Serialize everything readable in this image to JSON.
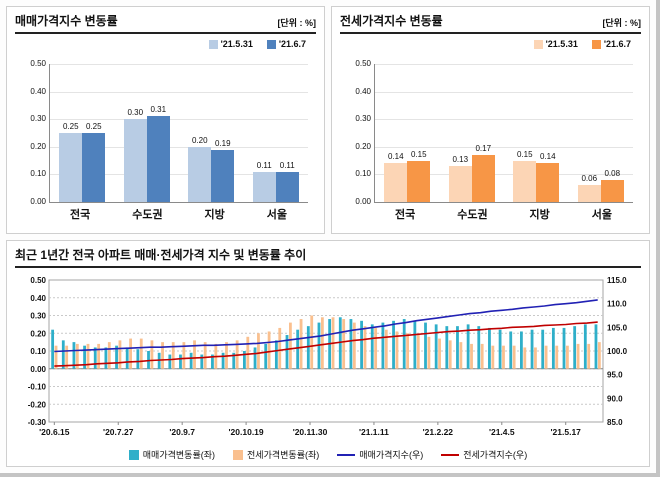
{
  "chart_data": [
    {
      "type": "bar",
      "title": "매매가격지수 변동률",
      "unit": "[단위 : %]",
      "categories": [
        "전국",
        "수도권",
        "지방",
        "서울"
      ],
      "ylim": [
        0,
        0.5
      ],
      "ystep": 0.1,
      "legend_position": "top-right",
      "series": [
        {
          "name": "'21.5.31",
          "color": "#b8cce4",
          "values": [
            0.25,
            0.3,
            0.2,
            0.11
          ]
        },
        {
          "name": "'21.6.7",
          "color": "#4f81bd",
          "values": [
            0.25,
            0.31,
            0.19,
            0.11
          ]
        }
      ]
    },
    {
      "type": "bar",
      "title": "전세가격지수 변동률",
      "unit": "[단위 : %]",
      "categories": [
        "전국",
        "수도권",
        "지방",
        "서울"
      ],
      "ylim": [
        0,
        0.5
      ],
      "ystep": 0.1,
      "legend_position": "top-right",
      "series": [
        {
          "name": "'21.5.31",
          "color": "#fcd5b5",
          "values": [
            0.14,
            0.13,
            0.15,
            0.06
          ]
        },
        {
          "name": "'21.6.7",
          "color": "#f79646",
          "values": [
            0.15,
            0.17,
            0.14,
            0.08
          ]
        }
      ]
    },
    {
      "type": "combo",
      "title": "최근 1년간 전국 아파트 매매·전세가격 지수 및 변동률 추이",
      "x_tick_labels": [
        "'20.6.15",
        "'20.7.27",
        "'20.9.7",
        "'20.10.19",
        "'20.11.30",
        "'21.1.11",
        "'21.2.22",
        "'21.4.5",
        "'21.5.17"
      ],
      "x_tick_every": 6,
      "n_points": 52,
      "left_axis": {
        "min": -0.3,
        "max": 0.5,
        "step": 0.1
      },
      "right_axis": {
        "min": 85.0,
        "max": 115.0,
        "step": 5.0
      },
      "grid": "dotted",
      "legend_position": "bottom",
      "series": [
        {
          "name": "매매가격변동률(좌)",
          "type": "bar",
          "axis": "left",
          "color": "#2fafc9",
          "values": [
            0.22,
            0.16,
            0.15,
            0.13,
            0.12,
            0.12,
            0.13,
            0.12,
            0.11,
            0.1,
            0.09,
            0.08,
            0.08,
            0.09,
            0.08,
            0.08,
            0.09,
            0.09,
            0.1,
            0.12,
            0.14,
            0.16,
            0.19,
            0.22,
            0.24,
            0.26,
            0.28,
            0.29,
            0.28,
            0.27,
            0.25,
            0.26,
            0.27,
            0.28,
            0.27,
            0.26,
            0.25,
            0.24,
            0.24,
            0.25,
            0.24,
            0.23,
            0.22,
            0.21,
            0.21,
            0.22,
            0.22,
            0.23,
            0.23,
            0.24,
            0.25,
            0.25
          ]
        },
        {
          "name": "전세가격변동률(좌)",
          "type": "bar",
          "axis": "left",
          "color": "#fac08f",
          "values": [
            0.13,
            0.13,
            0.14,
            0.14,
            0.14,
            0.15,
            0.16,
            0.17,
            0.17,
            0.16,
            0.15,
            0.15,
            0.15,
            0.16,
            0.15,
            0.14,
            0.15,
            0.16,
            0.18,
            0.2,
            0.21,
            0.23,
            0.26,
            0.28,
            0.3,
            0.29,
            0.29,
            0.28,
            0.26,
            0.24,
            0.23,
            0.22,
            0.21,
            0.2,
            0.19,
            0.18,
            0.17,
            0.16,
            0.15,
            0.14,
            0.14,
            0.13,
            0.13,
            0.13,
            0.12,
            0.12,
            0.13,
            0.13,
            0.13,
            0.14,
            0.14,
            0.15
          ]
        },
        {
          "name": "매매가격지수(우)",
          "type": "line",
          "axis": "right",
          "color": "#2121b4",
          "values": [
            99.9,
            100.0,
            100.1,
            100.2,
            100.3,
            100.4,
            100.5,
            100.6,
            100.7,
            100.8,
            100.8,
            100.9,
            101.0,
            101.1,
            101.2,
            101.2,
            101.3,
            101.4,
            101.5,
            101.6,
            101.8,
            102.0,
            102.3,
            102.6,
            102.9,
            103.2,
            103.6,
            104.0,
            104.4,
            104.7,
            105.0,
            105.3,
            105.7,
            106.0,
            106.4,
            106.7,
            107.0,
            107.3,
            107.6,
            107.9,
            108.1,
            108.4,
            108.6,
            108.8,
            109.1,
            109.3,
            109.5,
            109.8,
            110.0,
            110.2,
            110.5,
            110.8
          ]
        },
        {
          "name": "전세가격지수(우)",
          "type": "line",
          "axis": "right",
          "color": "#c00000",
          "values": [
            96.8,
            96.9,
            97.0,
            97.1,
            97.3,
            97.4,
            97.5,
            97.7,
            97.8,
            98.0,
            98.1,
            98.2,
            98.4,
            98.5,
            98.6,
            98.8,
            98.9,
            99.1,
            99.3,
            99.5,
            99.8,
            100.1,
            100.4,
            100.7,
            101.0,
            101.3,
            101.6,
            101.9,
            102.2,
            102.4,
            102.7,
            102.9,
            103.1,
            103.3,
            103.5,
            103.7,
            103.9,
            104.1,
            104.2,
            104.4,
            104.5,
            104.7,
            104.8,
            105.0,
            105.1,
            105.2,
            105.4,
            105.5,
            105.6,
            105.8,
            105.9,
            106.1
          ]
        }
      ]
    }
  ]
}
